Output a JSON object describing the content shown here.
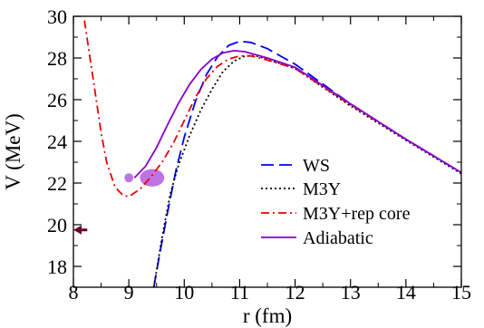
{
  "chart_data": {
    "type": "line",
    "xlabel": "r (fm)",
    "ylabel": "V (MeV)",
    "xlim": [
      8,
      15
    ],
    "ylim": [
      17,
      30
    ],
    "xticks": [
      8,
      9,
      10,
      11,
      12,
      13,
      14,
      15
    ],
    "yticks": [
      18,
      20,
      22,
      24,
      26,
      28,
      30
    ],
    "grid": false,
    "legend_position": "lower-right",
    "series": [
      {
        "name": "WS",
        "color": "#0000ee",
        "dash": "long-dash",
        "points": [
          [
            9.45,
            17.0
          ],
          [
            9.55,
            18.5
          ],
          [
            9.7,
            20.6
          ],
          [
            9.85,
            22.6
          ],
          [
            10.0,
            24.2
          ],
          [
            10.2,
            25.9
          ],
          [
            10.4,
            27.2
          ],
          [
            10.6,
            28.05
          ],
          [
            10.8,
            28.6
          ],
          [
            11.0,
            28.8
          ],
          [
            11.2,
            28.75
          ],
          [
            11.5,
            28.45
          ],
          [
            12.0,
            27.7
          ],
          [
            13.0,
            25.8
          ],
          [
            14.0,
            24.1
          ],
          [
            15.0,
            22.5
          ]
        ]
      },
      {
        "name": "M3Y",
        "color": "#000000",
        "dash": "dotted",
        "points": [
          [
            9.45,
            17.0
          ],
          [
            9.6,
            19.4
          ],
          [
            9.75,
            21.5
          ],
          [
            9.9,
            22.9
          ],
          [
            10.1,
            24.3
          ],
          [
            10.3,
            25.5
          ],
          [
            10.5,
            26.5
          ],
          [
            10.7,
            27.35
          ],
          [
            10.9,
            27.85
          ],
          [
            11.1,
            28.1
          ],
          [
            11.3,
            28.1
          ],
          [
            11.6,
            27.85
          ],
          [
            12.0,
            27.5
          ],
          [
            13.0,
            25.7
          ],
          [
            14.0,
            24.05
          ],
          [
            15.0,
            22.45
          ]
        ]
      },
      {
        "name": "M3Y+rep core",
        "color": "#ee0000",
        "dash": "dash-dot",
        "points": [
          [
            8.2,
            29.8
          ],
          [
            8.3,
            28.0
          ],
          [
            8.4,
            26.2
          ],
          [
            8.5,
            24.4
          ],
          [
            8.6,
            23.0
          ],
          [
            8.75,
            21.8
          ],
          [
            8.9,
            21.4
          ],
          [
            9.0,
            21.35
          ],
          [
            9.2,
            21.7
          ],
          [
            9.4,
            22.3
          ],
          [
            9.6,
            23.0
          ],
          [
            9.8,
            23.9
          ],
          [
            10.0,
            25.0
          ],
          [
            10.2,
            26.1
          ],
          [
            10.4,
            27.0
          ],
          [
            10.6,
            27.6
          ],
          [
            10.8,
            27.95
          ],
          [
            11.0,
            28.1
          ],
          [
            11.2,
            28.1
          ],
          [
            11.5,
            27.9
          ],
          [
            12.0,
            27.5
          ],
          [
            13.0,
            25.75
          ],
          [
            14.0,
            24.1
          ],
          [
            15.0,
            22.5
          ]
        ]
      },
      {
        "name": "Adiabatic",
        "color": "#8800cc",
        "dash": "solid",
        "points": [
          [
            9.1,
            22.25
          ],
          [
            9.3,
            22.8
          ],
          [
            9.5,
            23.7
          ],
          [
            9.7,
            24.8
          ],
          [
            9.9,
            25.85
          ],
          [
            10.1,
            26.75
          ],
          [
            10.3,
            27.45
          ],
          [
            10.5,
            27.95
          ],
          [
            10.7,
            28.25
          ],
          [
            10.9,
            28.35
          ],
          [
            11.1,
            28.3
          ],
          [
            11.5,
            28.0
          ],
          [
            12.0,
            27.55
          ],
          [
            13.0,
            25.8
          ],
          [
            14.0,
            24.1
          ],
          [
            15.0,
            22.5
          ]
        ]
      }
    ],
    "shaded_regions": [
      {
        "color": "#8800cc",
        "x_center": 9.0,
        "y_center": 22.25,
        "x_half_width": 0.08,
        "y_half_height": 0.22
      },
      {
        "color": "#8800cc",
        "x_center": 9.42,
        "y_center": 22.25,
        "x_half_width": 0.22,
        "y_half_height": 0.42
      }
    ],
    "arrow_marker": {
      "color": "#660033",
      "x_from": 8.25,
      "x_to": 8.0,
      "y": 19.75
    }
  }
}
